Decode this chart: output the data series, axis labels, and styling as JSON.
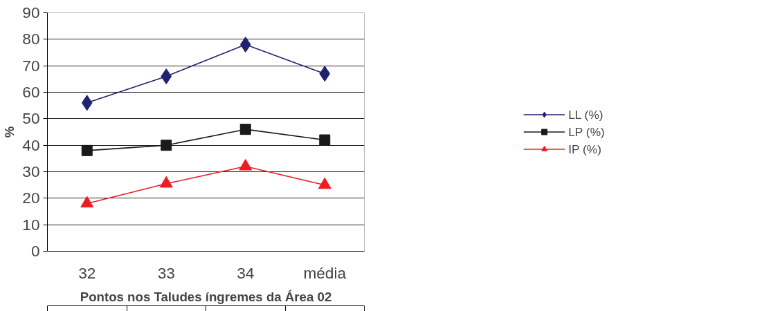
{
  "chart_data": {
    "type": "line",
    "xlabel": "Pontos nos Taludes íngremes da Área 02",
    "ylabel": "%",
    "categories": [
      "32",
      "33",
      "34",
      "média"
    ],
    "series": [
      {
        "name": "LL (%)",
        "color": "#1f2270",
        "marker": "diamond",
        "values": [
          56,
          66,
          78,
          67
        ]
      },
      {
        "name": "LP (%)",
        "color": "#1a1a1a",
        "marker": "square",
        "values": [
          38,
          40,
          46,
          42
        ]
      },
      {
        "name": "IP (%)",
        "color": "#ee1c25",
        "marker": "triangle",
        "values": [
          18,
          25.5,
          32,
          25
        ]
      }
    ],
    "ylim": [
      0,
      90
    ],
    "yticks": [
      0,
      10,
      20,
      30,
      40,
      50,
      60,
      70,
      80,
      90
    ],
    "grid": "y",
    "legend": "right"
  }
}
